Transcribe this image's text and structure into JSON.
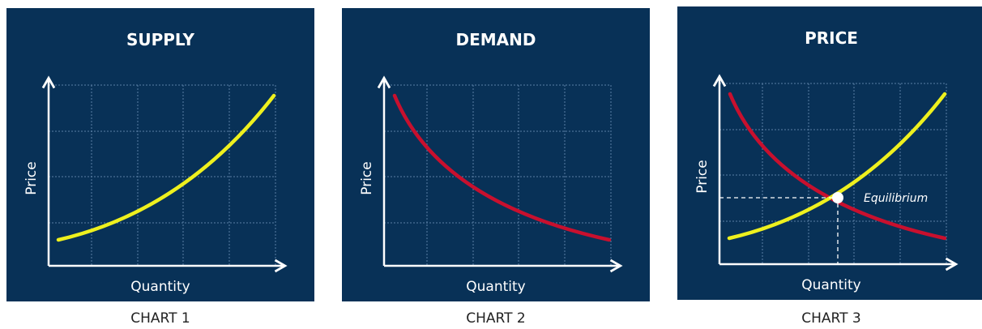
{
  "panels": [
    {
      "title": "SUPPLY",
      "y_label": "Price",
      "x_label": "Quantity",
      "caption": "CHART 1"
    },
    {
      "title": "DEMAND",
      "y_label": "Price",
      "x_label": "Quantity",
      "caption": "CHART 2"
    },
    {
      "title": "PRICE",
      "y_label": "Price",
      "x_label": "Quantity",
      "caption": "CHART 3",
      "annotation": "Equilibrium"
    }
  ]
}
